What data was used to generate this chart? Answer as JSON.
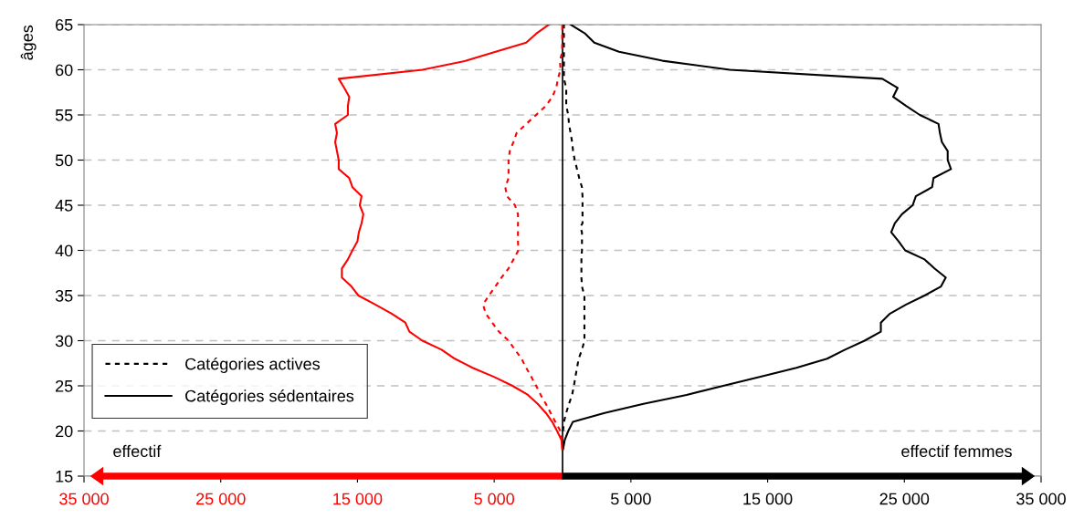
{
  "chart_data": {
    "type": "line",
    "ylabel": "âges",
    "xlim": [
      -35000,
      35000
    ],
    "xticks": [
      {
        "value": -35000,
        "label": "35 000"
      },
      {
        "value": -25000,
        "label": "25 000"
      },
      {
        "value": -15000,
        "label": "15 000"
      },
      {
        "value": -5000,
        "label": "5 000"
      },
      {
        "value": 5000,
        "label": "5 000"
      },
      {
        "value": 15000,
        "label": "15 000"
      },
      {
        "value": 25000,
        "label": "25 000"
      },
      {
        "value": 35000,
        "label": "35 000"
      }
    ],
    "ylim": [
      15,
      65
    ],
    "yticks": [
      15,
      20,
      25,
      30,
      35,
      40,
      45,
      50,
      55,
      60,
      65
    ],
    "grid": "y",
    "legend": "bottom left",
    "marker": "none",
    "ref_lines": [
      {
        "axis": "x",
        "value": 0,
        "color": "#000000",
        "line_style": "solid"
      }
    ],
    "annotations": [
      "effectif",
      "effectif femmes"
    ],
    "series": [
      {
        "name": "Catégories actives",
        "color": "#000000",
        "line_style": "dashed",
        "x": [
          40,
          100,
          270,
          470,
          700,
          830,
          940,
          1060,
          1180,
          1420,
          1600,
          1600,
          1600,
          1600,
          1600,
          1600,
          1420,
          1380,
          1380,
          1380,
          1420,
          1420,
          1420,
          1300,
          1460,
          1460,
          1460,
          1460,
          1420,
          1220,
          1060,
          890,
          770,
          700,
          590,
          470,
          420,
          270,
          270,
          270,
          100,
          100,
          100,
          100,
          100,
          100
        ],
        "values": [
          20,
          21,
          22,
          23,
          24,
          25,
          26,
          27,
          28,
          29,
          30,
          31,
          32,
          33,
          34,
          35,
          36,
          37,
          38,
          39,
          40,
          41,
          42,
          42.6,
          43,
          44,
          45,
          46,
          47,
          48,
          49,
          50,
          51,
          52,
          53,
          54,
          55,
          56,
          57,
          58,
          59,
          60,
          61,
          62,
          63,
          65
        ]
      },
      {
        "name": "Catégories sédentaires",
        "color": "#000000",
        "line_style": "solid",
        "x": [
          40,
          160,
          420,
          750,
          3080,
          5920,
          9070,
          11750,
          14480,
          17100,
          19350,
          20660,
          22090,
          23280,
          23280,
          23950,
          25130,
          26480,
          27680,
          28030,
          27200,
          26480,
          25060,
          24580,
          24040,
          24300,
          24820,
          25610,
          25840,
          27030,
          27130,
          28410,
          28170,
          28170,
          27745,
          27600,
          27500,
          26130,
          25130,
          24180,
          24510,
          23390,
          12230,
          7310,
          4130,
          2320,
          1660,
          590
        ],
        "values": [
          18,
          19,
          20,
          21,
          22,
          23,
          24,
          25,
          26,
          27,
          28,
          29,
          30,
          31,
          32,
          33,
          34,
          35,
          36,
          37,
          38,
          39,
          40,
          41,
          42,
          43,
          44,
          45,
          46,
          47,
          48,
          49,
          50,
          51,
          52,
          53,
          54,
          55,
          56,
          57,
          58,
          59,
          60,
          61,
          62,
          63,
          64,
          65
        ]
      },
      {
        "color": "#ff0000",
        "line_style": "dashed",
        "x": [
          -30,
          -150,
          -530,
          -870,
          -1220,
          -1600,
          -1930,
          -2290,
          -2660,
          -3000,
          -3480,
          -3950,
          -4660,
          -5140,
          -5620,
          -5810,
          -5390,
          -4920,
          -4460,
          -3950,
          -3590,
          -3230,
          -3260,
          -3260,
          -3260,
          -3260,
          -3480,
          -4060,
          -4190,
          -3950,
          -3950,
          -3950,
          -3860,
          -3590,
          -3360,
          -2660,
          -1930,
          -1220,
          -750,
          -460,
          -340,
          -150,
          -190,
          -30,
          -30,
          -20
        ],
        "values": [
          19,
          20,
          21,
          22,
          23,
          24,
          25,
          26,
          27,
          28,
          29,
          30,
          31,
          32,
          33,
          34,
          35,
          36,
          37,
          38,
          39,
          40,
          41,
          42,
          43,
          44,
          45,
          46,
          47,
          48,
          49,
          50,
          51,
          52,
          53,
          54,
          55,
          56,
          57,
          58,
          59,
          60,
          61,
          62,
          63,
          65
        ]
      },
      {
        "color": "#ff0000",
        "line_style": "solid",
        "x": [
          -30,
          -80,
          -400,
          -750,
          -1220,
          -1820,
          -2530,
          -3660,
          -5020,
          -6580,
          -7880,
          -8850,
          -10250,
          -11200,
          -11500,
          -12500,
          -13700,
          -14930,
          -15440,
          -16140,
          -16140,
          -15700,
          -15370,
          -15000,
          -14900,
          -14700,
          -14570,
          -14830,
          -14700,
          -15370,
          -15600,
          -16370,
          -16370,
          -16500,
          -16630,
          -16500,
          -16630,
          -15700,
          -15700,
          -15600,
          -15970,
          -16370,
          -10250,
          -7050,
          -4900,
          -2660,
          -1930,
          -1000
        ],
        "values": [
          18,
          19,
          20,
          21,
          22,
          23,
          24,
          25,
          26,
          27,
          28,
          29,
          30,
          31,
          32,
          33,
          34,
          35,
          36,
          37,
          38,
          39,
          40,
          41,
          42,
          43,
          44,
          45,
          46,
          47,
          48,
          49,
          50,
          51,
          52,
          53,
          54,
          55,
          56,
          57,
          58,
          59,
          60,
          61,
          62,
          63,
          64,
          65
        ]
      }
    ]
  }
}
